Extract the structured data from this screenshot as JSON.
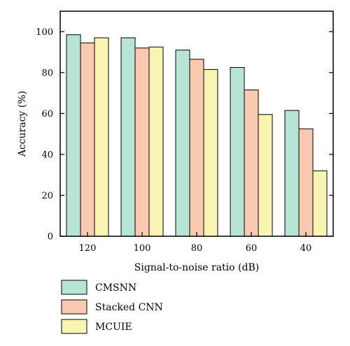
{
  "chart_data": {
    "type": "bar",
    "title": "",
    "xlabel": "Signal-to-noise ratio (dB)",
    "ylabel": "Accuracy (%)",
    "ylim": [
      0,
      110
    ],
    "yticks": [
      0,
      20,
      40,
      60,
      80,
      100
    ],
    "categories": [
      "120",
      "100",
      "80",
      "60",
      "40"
    ],
    "series": [
      {
        "name": "CMSNN",
        "color": "#b7e4d4",
        "values": [
          98.5,
          97,
          91,
          82.5,
          61.5
        ]
      },
      {
        "name": "Stacked CNN",
        "color": "#f9c9b0",
        "values": [
          94.5,
          92,
          86.5,
          71.5,
          52.5
        ]
      },
      {
        "name": "MCUIE",
        "color": "#f9f4b4",
        "values": [
          97,
          92.5,
          81.5,
          59.5,
          32
        ]
      }
    ],
    "grid": false,
    "legend_position": "bottom-left"
  }
}
